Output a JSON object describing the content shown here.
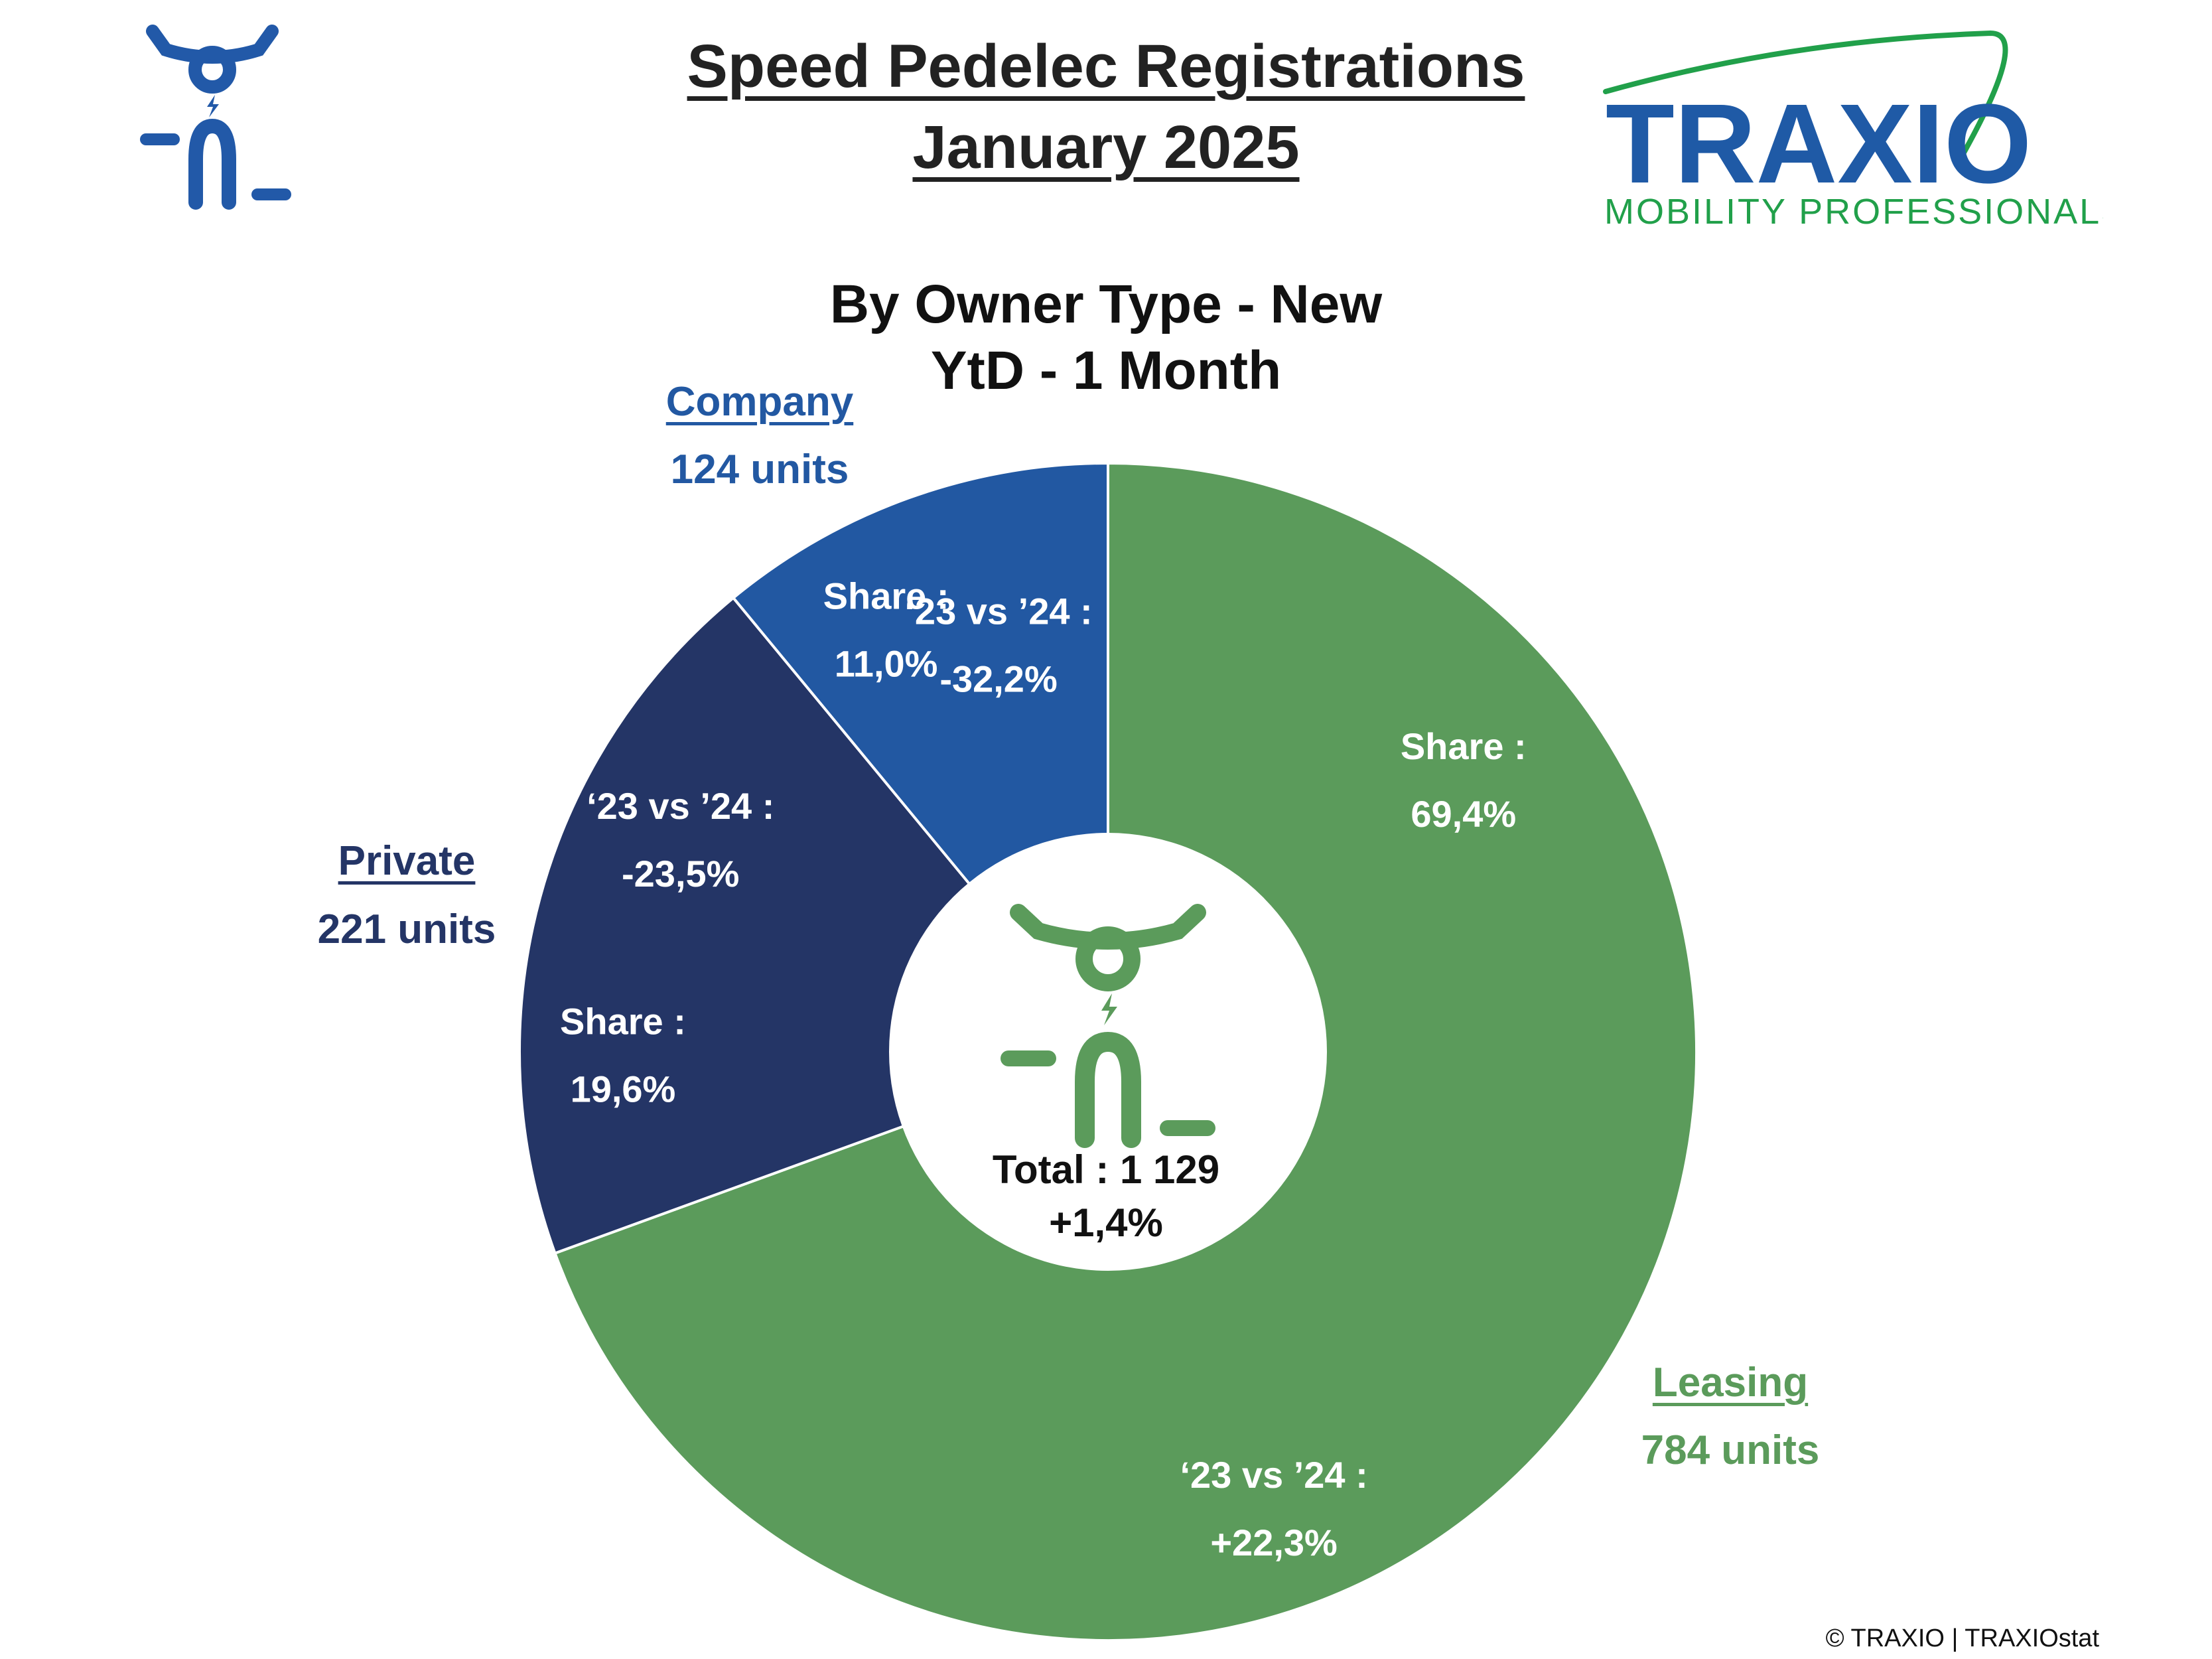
{
  "header": {
    "title_line1": "Speed Pedelec Registrations",
    "title_line2": "January 2025"
  },
  "logo": {
    "wordmark": "TRAXIO",
    "tagline": "MOBILITY PROFESSIONALS",
    "icon": "scooter-rider-icon"
  },
  "subtitle": {
    "line1": "By Owner Type - New",
    "line2": "YtD - 1 Month"
  },
  "chart_data": {
    "type": "pie",
    "title": "By Owner Type - New",
    "subtitle": "YtD - 1 Month",
    "share_label": "Share :",
    "change_label": "‘23 vs ’24 :",
    "slices": [
      {
        "name": "Leasing",
        "units_label": "784 units",
        "value": 784,
        "share": "69,4%",
        "change": "+22,3%",
        "color": "#5b9b5b"
      },
      {
        "name": "Private",
        "units_label": "221 units",
        "value": 221,
        "share": "19,6%",
        "change": "-23,5%",
        "color": "#243566"
      },
      {
        "name": "Company",
        "units_label": "124 units",
        "value": 124,
        "share": "11,0%",
        "change": "-32,2%",
        "color": "#2258a2"
      }
    ],
    "total_label": "Total : 1 129",
    "total_change": "+1,4%"
  },
  "colors": {
    "leasing": "#5b9b5b",
    "private": "#243566",
    "company": "#2258a2",
    "brand_blue": "#1f5aa6",
    "brand_green": "#21a04a"
  },
  "footer": {
    "copyright": "© TRAXIO | TRAXIOstat"
  }
}
